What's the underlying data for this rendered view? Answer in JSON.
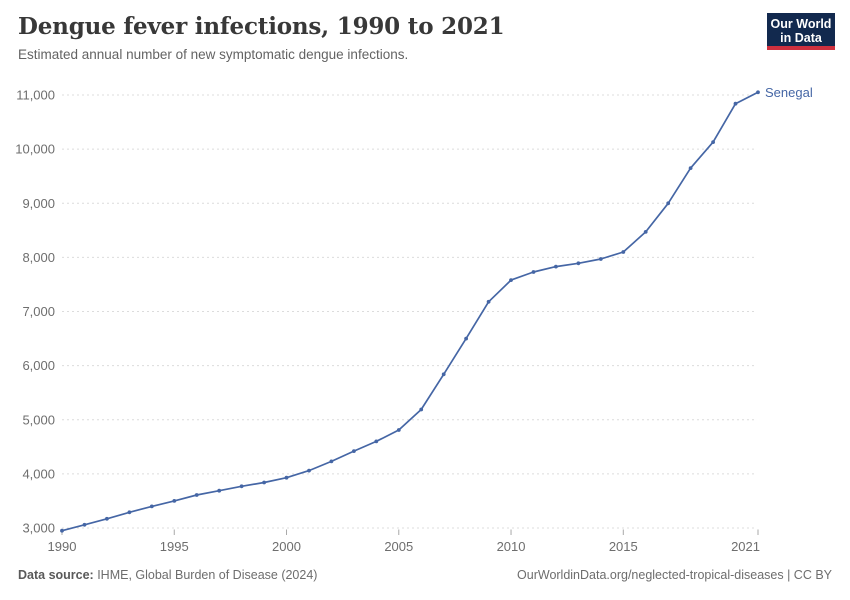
{
  "header": {
    "title": "Dengue fever infections, 1990 to 2021",
    "subtitle": "Estimated annual number of new symptomatic dengue infections."
  },
  "logo": {
    "line1": "Our World",
    "line2": "in Data",
    "bg_color": "#12294e",
    "accent_color": "#cf303e"
  },
  "chart_data": {
    "type": "line",
    "title": "Dengue fever infections, 1990 to 2021",
    "xlabel": "",
    "ylabel": "",
    "xlim": [
      1990,
      2021
    ],
    "ylim": [
      3000,
      11000
    ],
    "grid": "horizontal-dashed",
    "legend_position": "end-of-line",
    "x_ticks": [
      1990,
      1995,
      2000,
      2005,
      2010,
      2015,
      2021
    ],
    "y_ticks": [
      3000,
      4000,
      5000,
      6000,
      7000,
      8000,
      9000,
      10000,
      11000
    ],
    "series": [
      {
        "name": "Senegal",
        "color": "#4566a5",
        "x": [
          1990,
          1991,
          1992,
          1993,
          1994,
          1995,
          1996,
          1997,
          1998,
          1999,
          2000,
          2001,
          2002,
          2003,
          2004,
          2005,
          2006,
          2007,
          2008,
          2009,
          2010,
          2011,
          2012,
          2013,
          2014,
          2015,
          2016,
          2017,
          2018,
          2019,
          2020,
          2021
        ],
        "values": [
          2950,
          3060,
          3170,
          3290,
          3400,
          3500,
          3610,
          3690,
          3770,
          3840,
          3930,
          4060,
          4230,
          4420,
          4600,
          4810,
          5190,
          5840,
          6500,
          7180,
          7580,
          7730,
          7830,
          7890,
          7970,
          8100,
          8470,
          9000,
          9650,
          10130,
          10840,
          11050
        ]
      }
    ]
  },
  "footer": {
    "source_label": "Data source:",
    "source_text": " IHME, Global Burden of Disease (2024)",
    "right_text": "OurWorldinData.org/neglected-tropical-diseases | CC BY"
  }
}
